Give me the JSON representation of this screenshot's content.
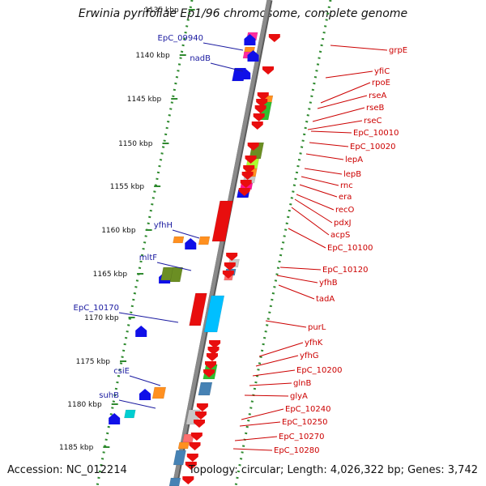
{
  "title": "Erwinia pyrifoliae Ep1/96 chromosome, complete genome",
  "footer": {
    "accession": "Accession: NC_012214",
    "summary": "Topology: circular; Length: 4,026,322 bp; Genes: 3,742"
  },
  "colors": {
    "left_gene_label": "#1a1aa0",
    "right_gene_label": "#cc0000",
    "forward_strand": "#1010e8",
    "reverse_strand": "#e80e0e",
    "backbone": "#8a8a8a",
    "ruler_dots": "#2f8a2f"
  },
  "ticks": [
    {
      "label": "1135 kbp"
    },
    {
      "label": "1140 kbp"
    },
    {
      "label": "1145 kbp"
    },
    {
      "label": "1150 kbp"
    },
    {
      "label": "1155 kbp"
    },
    {
      "label": "1160 kbp"
    },
    {
      "label": "1165 kbp"
    },
    {
      "label": "1170 kbp"
    },
    {
      "label": "1175 kbp"
    },
    {
      "label": "1180 kbp"
    },
    {
      "label": "1185 kbp"
    }
  ],
  "left_genes": [
    {
      "name": "EpC_09940"
    },
    {
      "name": "nadB"
    },
    {
      "name": "yfhH"
    },
    {
      "name": "mltF"
    },
    {
      "name": "EpC_10170"
    },
    {
      "name": "csiE"
    },
    {
      "name": "suhB"
    }
  ],
  "right_genes": [
    {
      "name": "grpE"
    },
    {
      "name": "yfiC"
    },
    {
      "name": "rpoE"
    },
    {
      "name": "rseA"
    },
    {
      "name": "rseB"
    },
    {
      "name": "rseC"
    },
    {
      "name": "EpC_10010"
    },
    {
      "name": "EpC_10020"
    },
    {
      "name": "lepA"
    },
    {
      "name": "lepB"
    },
    {
      "name": "rnc"
    },
    {
      "name": "era"
    },
    {
      "name": "recO"
    },
    {
      "name": "pdxJ"
    },
    {
      "name": "acpS"
    },
    {
      "name": "EpC_10100"
    },
    {
      "name": "EpC_10120"
    },
    {
      "name": "yfhB"
    },
    {
      "name": "tadA"
    },
    {
      "name": "purL"
    },
    {
      "name": "yfhK"
    },
    {
      "name": "yfhG"
    },
    {
      "name": "EpC_10200"
    },
    {
      "name": "glnB"
    },
    {
      "name": "glyA"
    },
    {
      "name": "EpC_10240"
    },
    {
      "name": "EpC_10250"
    },
    {
      "name": "EpC_10270"
    },
    {
      "name": "EpC_10280"
    }
  ]
}
